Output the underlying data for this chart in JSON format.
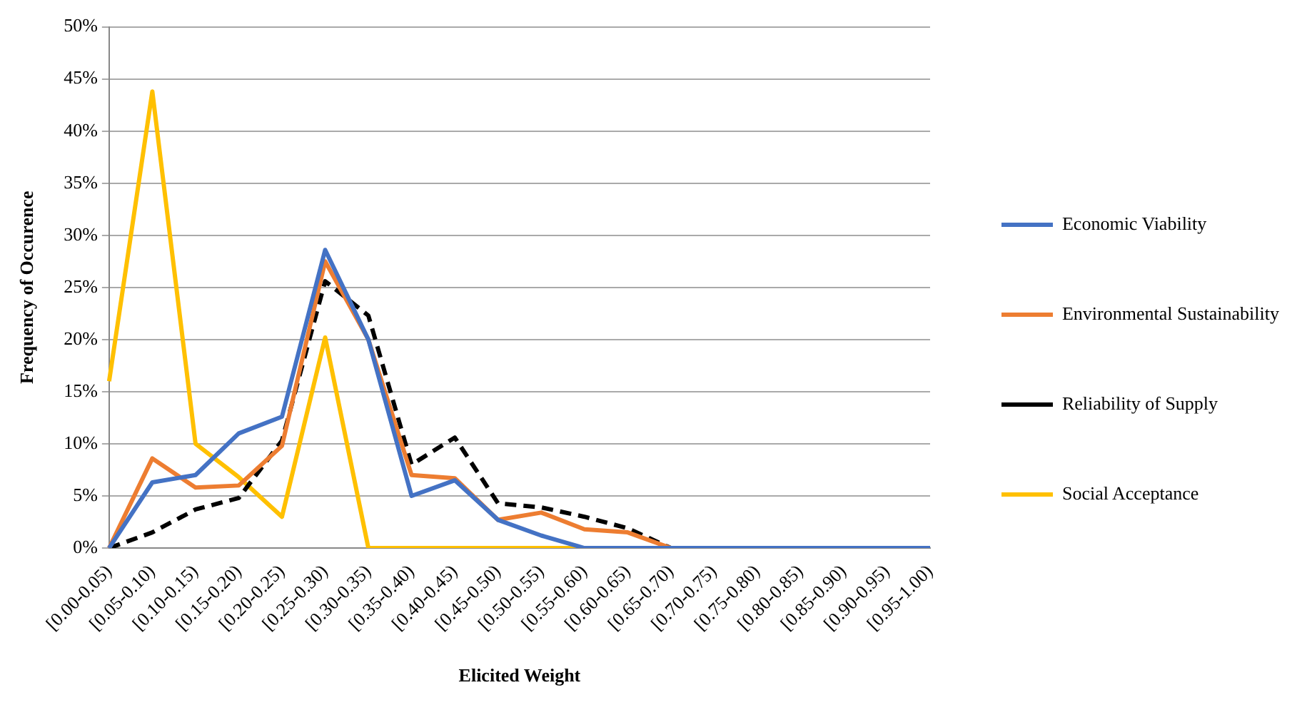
{
  "chart_data": {
    "type": "line",
    "xlabel": "Elicited Weight",
    "ylabel": "Frequency of Occurence",
    "categories": [
      "[0.00-0.05)",
      "[0.05-0.10)",
      "[0.10-0.15)",
      "[0.15-0.20)",
      "[0.20-0.25)",
      "[0.25-0.30)",
      "[0.30-0.35)",
      "[0.35-0.40)",
      "[0.40-0.45)",
      "[0.45-0.50)",
      "[0.50-0.55)",
      "[0.55-0.60)",
      "[0.60-0.65)",
      "[0.65-0.70)",
      "[0.70-0.75)",
      "[0.75-0.80)",
      "[0.80-0.85)",
      "[0.85-0.90)",
      "[0.90-0.95)",
      "[0.95-1.00)"
    ],
    "series": [
      {
        "name": "Economic Viability",
        "color": "#4472c4",
        "values": [
          0,
          6.3,
          7,
          11,
          12.6,
          28.6,
          20,
          5,
          6.5,
          2.7,
          1.2,
          0,
          0,
          0,
          0,
          0,
          0,
          0,
          0,
          0
        ]
      },
      {
        "name": "Environmental Sustainability",
        "color": "#ed7d31",
        "values": [
          0,
          8.6,
          5.8,
          6,
          9.8,
          27.5,
          20,
          7,
          6.7,
          2.7,
          3.4,
          1.8,
          1.5,
          0,
          0,
          null,
          null,
          null,
          null,
          null
        ]
      },
      {
        "name": "Reliability of Supply",
        "color": "#000000",
        "line_style": "dashed",
        "values": [
          0,
          1.5,
          3.7,
          4.8,
          10.3,
          25.6,
          22.3,
          8,
          10.6,
          4.3,
          3.9,
          3,
          1.9,
          0,
          0,
          0,
          0,
          0,
          0,
          0
        ]
      },
      {
        "name": "Social Acceptance",
        "color": "#ffc000",
        "values": [
          16,
          43.8,
          10,
          6.8,
          3,
          20.2,
          0,
          0,
          0,
          0,
          0,
          0,
          0,
          null,
          null,
          null,
          null,
          null,
          null,
          null
        ]
      }
    ],
    "ylim": [
      0,
      50
    ],
    "yticks": [
      {
        "value": 0,
        "label": "0%"
      },
      {
        "value": 5,
        "label": "5%"
      },
      {
        "value": 10,
        "label": "10%"
      },
      {
        "value": 15,
        "label": "15%"
      },
      {
        "value": 20,
        "label": "20%"
      },
      {
        "value": 25,
        "label": "25%"
      },
      {
        "value": 30,
        "label": "30%"
      },
      {
        "value": 35,
        "label": "35%"
      },
      {
        "value": 40,
        "label": "40%"
      },
      {
        "value": 45,
        "label": "45%"
      },
      {
        "value": 50,
        "label": "50%"
      }
    ],
    "grid": "y",
    "legend": "right",
    "marker": "none",
    "line_style": "solid"
  }
}
